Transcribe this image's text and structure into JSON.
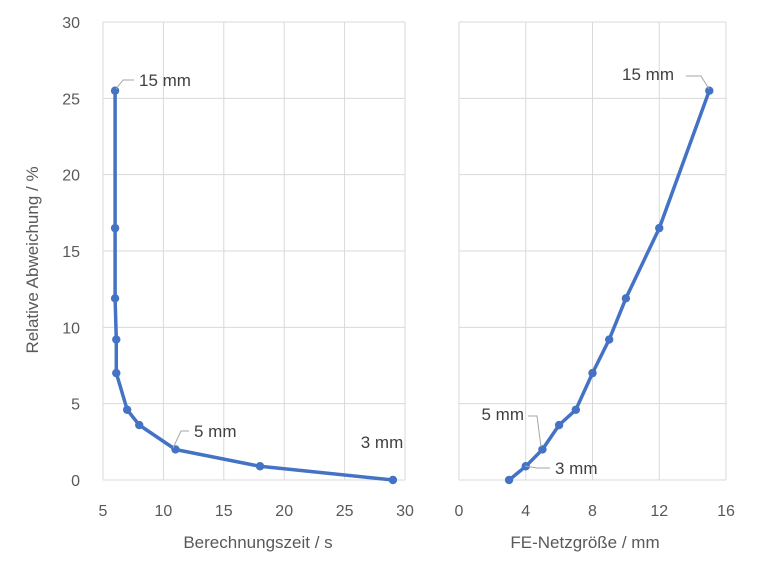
{
  "chart_data": [
    {
      "type": "line",
      "ylabel": "Relative Abweichung / %",
      "xlabel": "Berechnungszeit / s",
      "xlim": [
        5,
        30
      ],
      "ylim": [
        0,
        30
      ],
      "x_ticks": [
        "5",
        "10",
        "15",
        "20",
        "25",
        "30"
      ],
      "y_ticks": [
        "0",
        "5",
        "10",
        "15",
        "20",
        "25",
        "30"
      ],
      "grid": true,
      "series": [
        {
          "color": "#4472c4",
          "x": [
            6,
            6,
            6,
            6.1,
            6.1,
            7,
            8,
            11,
            18,
            29
          ],
          "y": [
            25.5,
            16.5,
            11.9,
            9.2,
            7.0,
            4.6,
            3.6,
            2.0,
            0.9,
            0
          ]
        }
      ],
      "annotations": [
        {
          "text": "15 mm",
          "x": 6,
          "y": 25.5
        },
        {
          "text": "5 mm",
          "x": 11,
          "y": 2.0
        },
        {
          "text": "3 mm",
          "x": 29,
          "y": 0
        }
      ]
    },
    {
      "type": "line",
      "ylabel": "",
      "xlabel": "FE-Netzgröße / mm",
      "xlim": [
        0,
        16
      ],
      "ylim": [
        0,
        30
      ],
      "x_ticks": [
        "0",
        "4",
        "8",
        "12",
        "16"
      ],
      "grid": true,
      "series": [
        {
          "color": "#4472c4",
          "x": [
            3,
            4,
            5,
            6,
            7,
            8,
            9,
            10,
            12,
            15
          ],
          "y": [
            0,
            0.9,
            2.0,
            3.6,
            4.6,
            7.0,
            9.2,
            11.9,
            16.5,
            25.5
          ]
        }
      ],
      "annotations": [
        {
          "text": "15 mm",
          "x": 15,
          "y": 25.5
        },
        {
          "text": "5 mm",
          "x": 5,
          "y": 2.0
        },
        {
          "text": "3 mm",
          "x": 3,
          "y": 0
        }
      ]
    }
  ]
}
